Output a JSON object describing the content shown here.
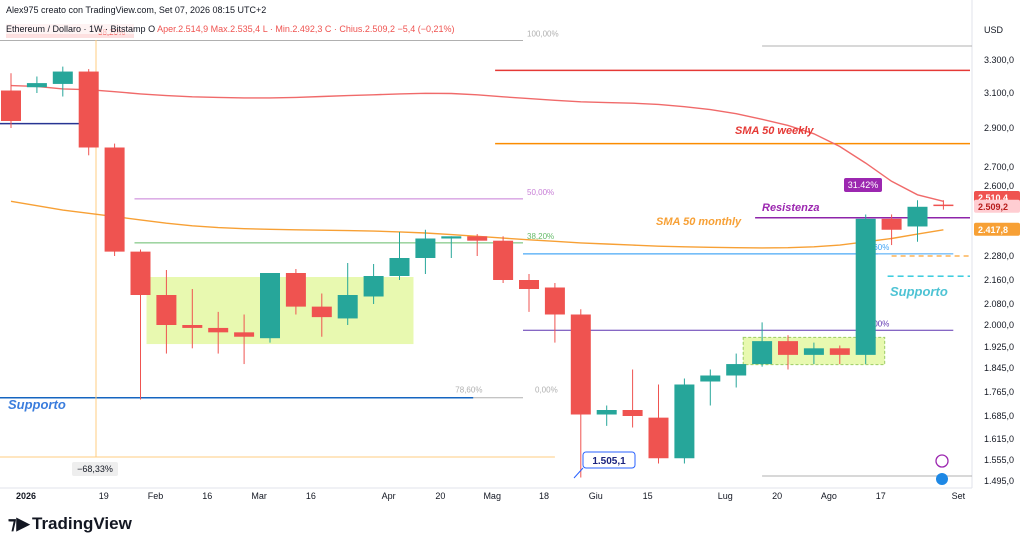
{
  "header": {
    "caption": "Alex975 creato con TradingView.com, Set 07, 2026 08:15 UTC+2",
    "symbol": "Ethereum / Dollaro · 1W · Bitstamp",
    "open_label": "O",
    "open": "Aper.2.514,9",
    "high": "Max.2.535,4",
    "low": "L · Min.2.492,3",
    "close": "C · Chius.2.509,2",
    "change": "−5,4 (−0,21%)",
    "currency": "USD"
  },
  "brand": "TradingView",
  "colors": {
    "up": "#26a69a",
    "down": "#ef5350",
    "sma_weekly": "#f06a6a",
    "sma_monthly": "#f7a035",
    "support": "#2962ff",
    "support_text": "#3b7ddd",
    "support2_text": "#4ec3d4",
    "resist": "#9c27b0",
    "zone": "#e8f9b0",
    "fib": "#aaaaaa"
  },
  "chart_data": {
    "type": "candlestick",
    "title": "",
    "ylim": [
      1450,
      3450
    ],
    "y_ticks": [
      "3.300,0",
      "3.100,0",
      "2.900,0",
      "2.700,0",
      "2.600,0",
      "2.280,0",
      "2.160,0",
      "2.080,0",
      "2.000,0",
      "1.925,0",
      "1.845,0",
      "1.765,0",
      "1.685,0",
      "1.615,0",
      "1.555,0",
      "1.495,0"
    ],
    "y_tick_values": [
      3300,
      3100,
      2900,
      2700,
      2600,
      2280,
      2160,
      2080,
      2000,
      1925,
      1845,
      1765,
      1685,
      1615,
      1555,
      1495
    ],
    "x_labels": [
      "2026",
      "19",
      "Feb",
      "16",
      "Mar",
      "16",
      "Apr",
      "20",
      "Mag",
      "18",
      "Giu",
      "15",
      "Lug",
      "20",
      "Ago",
      "17",
      "Set"
    ],
    "x_label_weeks": [
      0,
      3,
      5,
      7,
      9,
      11,
      14,
      16,
      18,
      20,
      22,
      24,
      27,
      29,
      31,
      33,
      36
    ],
    "candles": [
      [
        3115,
        3220,
        2900,
        2940
      ],
      [
        3135,
        3200,
        3100,
        3160
      ],
      [
        3155,
        3260,
        3080,
        3230
      ],
      [
        3230,
        3245,
        2760,
        2800
      ],
      [
        2800,
        2820,
        2280,
        2300
      ],
      [
        2300,
        2310,
        1740,
        2110
      ],
      [
        2110,
        2210,
        1900,
        2000
      ],
      [
        2000,
        2130,
        1920,
        1990
      ],
      [
        1990,
        2050,
        1900,
        1975
      ],
      [
        1975,
        2040,
        1860,
        1960
      ],
      [
        1955,
        2190,
        1940,
        2195
      ],
      [
        2195,
        2215,
        2040,
        2070
      ],
      [
        2070,
        2115,
        1960,
        2030
      ],
      [
        2025,
        2245,
        2000,
        2110
      ],
      [
        2105,
        2240,
        2080,
        2180
      ],
      [
        2180,
        2390,
        2160,
        2270
      ],
      [
        2270,
        2400,
        2190,
        2360
      ],
      [
        2360,
        2370,
        2270,
        2370
      ],
      [
        2370,
        2380,
        2280,
        2350
      ],
      [
        2350,
        2370,
        2150,
        2160
      ],
      [
        2160,
        2190,
        2050,
        2130
      ],
      [
        2135,
        2150,
        1940,
        2040
      ],
      [
        2040,
        2060,
        1505,
        1690
      ],
      [
        1690,
        1720,
        1655,
        1705
      ],
      [
        1705,
        1840,
        1650,
        1685
      ],
      [
        1680,
        1790,
        1545,
        1560
      ],
      [
        1560,
        1810,
        1545,
        1790
      ],
      [
        1800,
        1840,
        1720,
        1820
      ],
      [
        1820,
        1900,
        1780,
        1860
      ],
      [
        1860,
        2010,
        1850,
        1945
      ],
      [
        1945,
        1965,
        1840,
        1895
      ],
      [
        1895,
        1940,
        1860,
        1920
      ],
      [
        1920,
        1930,
        1860,
        1895
      ],
      [
        1895,
        2470,
        1860,
        2450
      ],
      [
        2450,
        2470,
        2330,
        2400
      ],
      [
        2415,
        2535,
        2345,
        2505
      ],
      [
        2515,
        2535,
        2492,
        2509
      ]
    ],
    "sma_weekly": [
      3145,
      3140,
      3125,
      3120,
      3108,
      3095,
      3085,
      3078,
      3075,
      3072,
      3072,
      3075,
      3080,
      3085,
      3090,
      3095,
      3098,
      3097,
      3090,
      3078,
      3068,
      3058,
      3050,
      3045,
      3042,
      3035,
      3022,
      3005,
      2982,
      2950,
      2915,
      2870,
      2805,
      2720,
      2625,
      2560,
      2530
    ],
    "sma_monthly": [
      2530,
      2510,
      2490,
      2475,
      2460,
      2445,
      2430,
      2418,
      2410,
      2405,
      2402,
      2400,
      2398,
      2396,
      2394,
      2390,
      2385,
      2378,
      2370,
      2362,
      2354,
      2347,
      2340,
      2335,
      2330,
      2325,
      2322,
      2320,
      2318,
      2317,
      2318,
      2322,
      2330,
      2345,
      2360,
      2380,
      2400
    ],
    "fib_levels": [
      {
        "label": "100,00%",
        "value": 3377,
        "from": 0,
        "to": 20
      },
      {
        "label": "50,00%",
        "value": 2541,
        "from": 5,
        "to": 20
      },
      {
        "label": "38,20%",
        "value": 2340,
        "from": 5,
        "to": 20
      },
      {
        "label": "78,60%",
        "value": 1746,
        "from": 0,
        "to": 18
      },
      {
        "label": "0,00%",
        "value": 1746,
        "from": 5,
        "to": 20
      },
      {
        "label": "8,60%",
        "value": 2290,
        "from": 20,
        "to": 37
      },
      {
        "label": "0,00%",
        "value": 1982,
        "from": 20,
        "to": 37
      }
    ],
    "badges": {
      "drop": "−68,33%",
      "low_price": "1.505,1",
      "rise": "31.42%",
      "last": "2.510,4",
      "close": "2.509,2",
      "monthly": "2.417,8",
      "fib_top": "38,20%"
    },
    "annotations": {
      "sma_weekly": "SMA 50 weekly",
      "sma_monthly": "SMA 50 monthly",
      "resist": "Resistenza",
      "support_left": "Supporto",
      "support_right": "Supporto"
    },
    "lines": {
      "red_top": 3237,
      "orange_mid": 2820,
      "support_left": 2925,
      "support_bottom": 1746,
      "resistance": 2455,
      "support_right": 2179
    }
  }
}
